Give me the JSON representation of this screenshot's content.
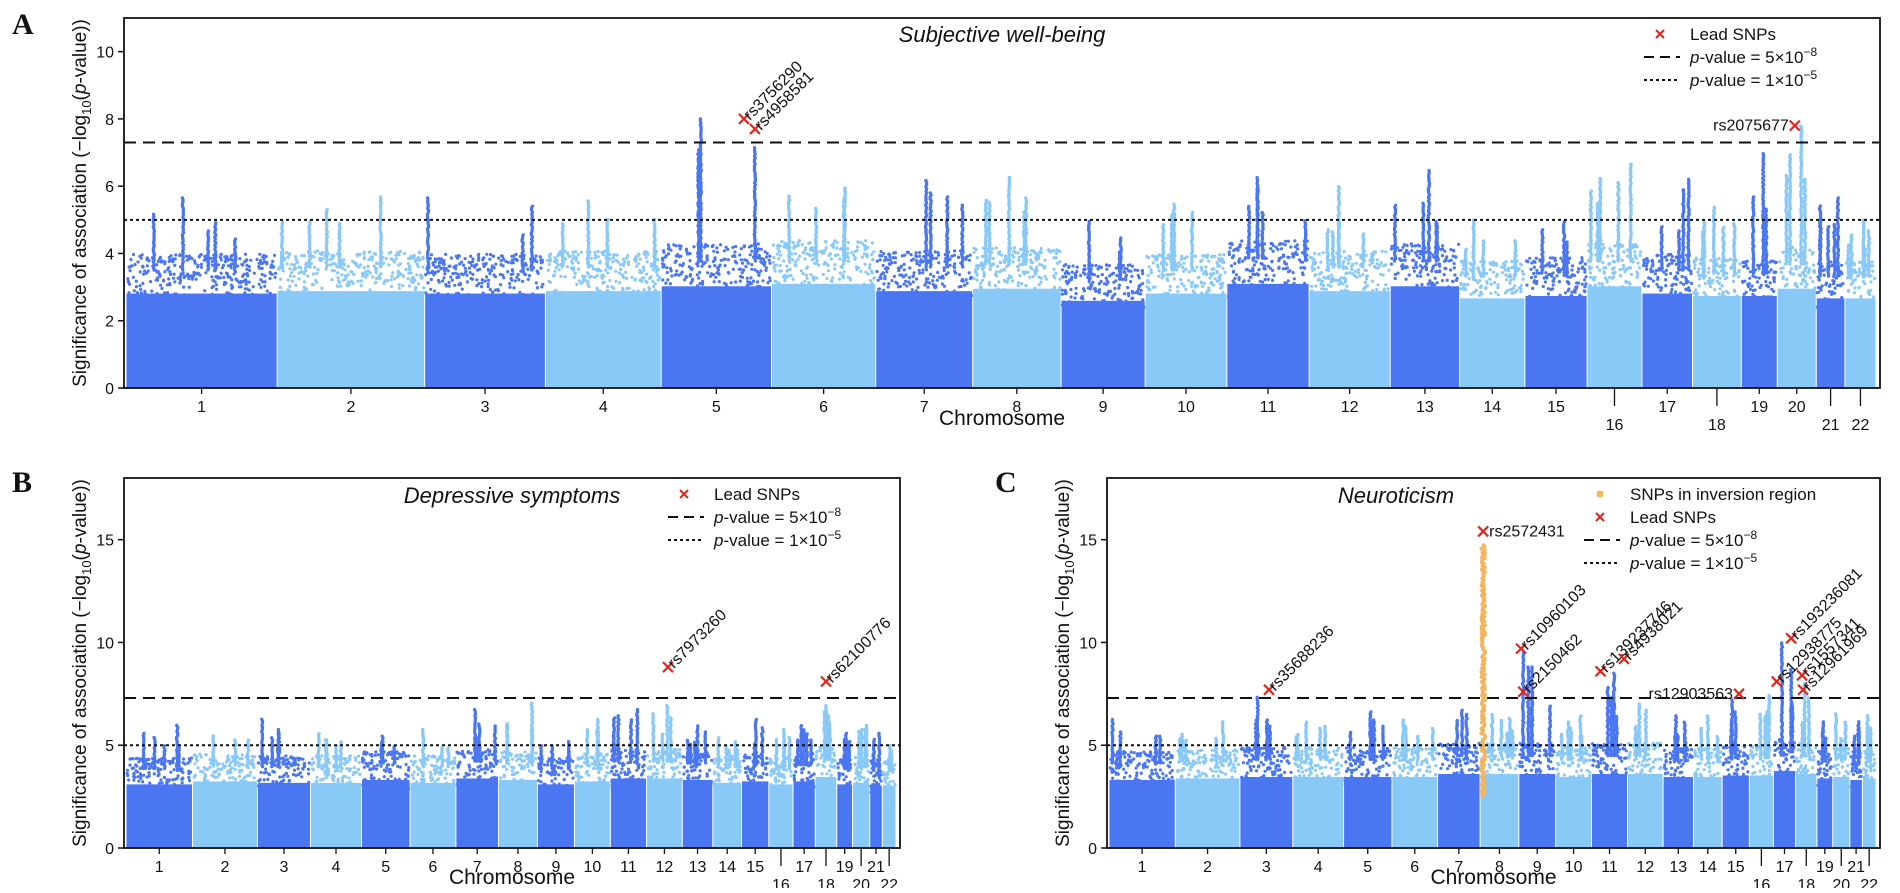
{
  "colors": {
    "dark": "#4a76f2",
    "light": "#88c9f7",
    "inversion": "#f3b45c",
    "lead": "#e0251b",
    "axis": "#111111"
  },
  "legend_text": {
    "lead": "Lead SNPs",
    "inversion": "SNPs in inversion region",
    "gw_prefix": "p",
    "gw_mid": "-value = 5×10",
    "gw_exp": "−8",
    "sug_prefix": "p",
    "sug_mid": "-value = 1×10",
    "sug_exp": "−5"
  },
  "chart_data": [
    {
      "type": "scatter",
      "subtype": "manhattan",
      "panel_label": "A",
      "title": "Subjective well-being",
      "xlabel": "Chromosome",
      "ylabel": "Significance of association (−log10(p-value))",
      "ylim": [
        0,
        11
      ],
      "yticks": [
        0,
        2,
        4,
        6,
        8,
        10
      ],
      "genome_wide_threshold": 7.3,
      "suggestive_threshold": 5.0,
      "legend": [
        "Lead SNPs",
        "p-value = 5×10−8",
        "p-value = 1×10−5"
      ],
      "legend_position": "top-right",
      "chromosomes": [
        {
          "chr": "1",
          "base": 3.9,
          "peak": 5.7
        },
        {
          "chr": "2",
          "base": 4.0,
          "peak": 5.7
        },
        {
          "chr": "3",
          "base": 3.9,
          "peak": 5.7
        },
        {
          "chr": "4",
          "base": 4.0,
          "peak": 5.6
        },
        {
          "chr": "5",
          "base": 4.2,
          "peak": 8.0
        },
        {
          "chr": "6",
          "base": 4.3,
          "peak": 6.0
        },
        {
          "chr": "7",
          "base": 4.0,
          "peak": 6.2
        },
        {
          "chr": "8",
          "base": 4.1,
          "peak": 6.3
        },
        {
          "chr": "9",
          "base": 3.6,
          "peak": 5.0
        },
        {
          "chr": "10",
          "base": 3.9,
          "peak": 5.5
        },
        {
          "chr": "11",
          "base": 4.3,
          "peak": 6.3
        },
        {
          "chr": "12",
          "base": 4.0,
          "peak": 6.0
        },
        {
          "chr": "13",
          "base": 4.2,
          "peak": 6.5
        },
        {
          "chr": "14",
          "base": 3.7,
          "peak": 5.0
        },
        {
          "chr": "15",
          "base": 3.8,
          "peak": 5.0
        },
        {
          "chr": "16",
          "base": 4.2,
          "peak": 6.7
        },
        {
          "chr": "17",
          "base": 3.9,
          "peak": 6.2
        },
        {
          "chr": "18",
          "base": 3.8,
          "peak": 5.4
        },
        {
          "chr": "19",
          "base": 3.8,
          "peak": 7.0
        },
        {
          "chr": "20",
          "base": 4.1,
          "peak": 7.8
        },
        {
          "chr": "21",
          "base": 3.7,
          "peak": 5.7
        },
        {
          "chr": "22",
          "base": 3.7,
          "peak": 5.0
        }
      ],
      "lead_snps": [
        {
          "id": "rs3756290",
          "chr": "5",
          "pos": 0.75,
          "y": 8.0
        },
        {
          "id": "rs4958581",
          "chr": "5",
          "pos": 0.85,
          "y": 7.7
        },
        {
          "id": "rs2075677",
          "chr": "20",
          "pos": 0.45,
          "y": 7.8
        }
      ]
    },
    {
      "type": "scatter",
      "subtype": "manhattan",
      "panel_label": "B",
      "title": "Depressive symptoms",
      "xlabel": "Chromosome",
      "ylabel": "Significance of association (−log10(p-value))",
      "ylim": [
        0,
        18
      ],
      "yticks": [
        0,
        5,
        10,
        15
      ],
      "genome_wide_threshold": 7.3,
      "suggestive_threshold": 5.0,
      "legend": [
        "Lead SNPs",
        "p-value = 5×10−8",
        "p-value = 1×10−5"
      ],
      "legend_position": "top-right",
      "chromosomes": [
        {
          "chr": "1",
          "base": 4.3,
          "peak": 6.0
        },
        {
          "chr": "2",
          "base": 4.5,
          "peak": 5.5
        },
        {
          "chr": "3",
          "base": 4.4,
          "peak": 6.3
        },
        {
          "chr": "4",
          "base": 4.4,
          "peak": 5.6
        },
        {
          "chr": "5",
          "base": 4.6,
          "peak": 5.5
        },
        {
          "chr": "6",
          "base": 4.4,
          "peak": 5.8
        },
        {
          "chr": "7",
          "base": 4.7,
          "peak": 6.8
        },
        {
          "chr": "8",
          "base": 4.6,
          "peak": 7.1
        },
        {
          "chr": "9",
          "base": 4.3,
          "peak": 5.2
        },
        {
          "chr": "10",
          "base": 4.5,
          "peak": 6.3
        },
        {
          "chr": "11",
          "base": 4.7,
          "peak": 6.8
        },
        {
          "chr": "12",
          "base": 4.7,
          "peak": 7.0
        },
        {
          "chr": "13",
          "base": 4.6,
          "peak": 6.0
        },
        {
          "chr": "14",
          "base": 4.4,
          "peak": 5.4
        },
        {
          "chr": "15",
          "base": 4.5,
          "peak": 6.3
        },
        {
          "chr": "16",
          "base": 4.3,
          "peak": 5.8
        },
        {
          "chr": "17",
          "base": 4.5,
          "peak": 6.0
        },
        {
          "chr": "18",
          "base": 4.8,
          "peak": 7.0
        },
        {
          "chr": "19",
          "base": 4.3,
          "peak": 5.6
        },
        {
          "chr": "20",
          "base": 4.4,
          "peak": 6.0
        },
        {
          "chr": "21",
          "base": 4.2,
          "peak": 5.6
        },
        {
          "chr": "22",
          "base": 4.2,
          "peak": 5.0
        }
      ],
      "lead_snps": [
        {
          "id": "rs7973260",
          "chr": "12",
          "pos": 0.6,
          "y": 8.8
        },
        {
          "id": "rs62100776",
          "chr": "18",
          "pos": 0.5,
          "y": 8.1
        }
      ]
    },
    {
      "type": "scatter",
      "subtype": "manhattan",
      "panel_label": "C",
      "title": "Neuroticism",
      "xlabel": "Chromosome",
      "ylabel": "Significance of association (−log10(p-value))",
      "ylim": [
        0,
        18
      ],
      "yticks": [
        0,
        5,
        10,
        15
      ],
      "genome_wide_threshold": 7.3,
      "suggestive_threshold": 5.0,
      "legend": [
        "SNPs in inversion region",
        "Lead SNPs",
        "p-value = 5×10−8",
        "p-value = 1×10−5"
      ],
      "legend_position": "top-right",
      "inversion_region": {
        "chr": "8",
        "pos": 0.08,
        "ymin": 2.5,
        "ymax": 14.8
      },
      "chromosomes": [
        {
          "chr": "1",
          "base": 4.6,
          "peak": 6.3
        },
        {
          "chr": "2",
          "base": 4.7,
          "peak": 6.2
        },
        {
          "chr": "3",
          "base": 4.8,
          "peak": 7.4
        },
        {
          "chr": "4",
          "base": 4.8,
          "peak": 6.2
        },
        {
          "chr": "5",
          "base": 4.8,
          "peak": 6.7
        },
        {
          "chr": "6",
          "base": 4.8,
          "peak": 6.3
        },
        {
          "chr": "7",
          "base": 5.0,
          "peak": 6.7
        },
        {
          "chr": "8",
          "base": 5.0,
          "peak": 6.5
        },
        {
          "chr": "9",
          "base": 5.0,
          "peak": 9.5
        },
        {
          "chr": "10",
          "base": 4.8,
          "peak": 6.5
        },
        {
          "chr": "11",
          "base": 5.0,
          "peak": 8.5
        },
        {
          "chr": "12",
          "base": 5.0,
          "peak": 7.0
        },
        {
          "chr": "13",
          "base": 4.8,
          "peak": 6.5
        },
        {
          "chr": "14",
          "base": 4.8,
          "peak": 6.5
        },
        {
          "chr": "15",
          "base": 4.9,
          "peak": 7.3
        },
        {
          "chr": "16",
          "base": 4.9,
          "peak": 7.5
        },
        {
          "chr": "17",
          "base": 5.2,
          "peak": 10.0
        },
        {
          "chr": "18",
          "base": 5.0,
          "peak": 8.0
        },
        {
          "chr": "19",
          "base": 4.7,
          "peak": 6.2
        },
        {
          "chr": "20",
          "base": 4.8,
          "peak": 6.6
        },
        {
          "chr": "21",
          "base": 4.6,
          "peak": 6.2
        },
        {
          "chr": "22",
          "base": 4.7,
          "peak": 6.5
        }
      ],
      "lead_snps": [
        {
          "id": "rs35688236",
          "chr": "3",
          "pos": 0.55,
          "y": 7.7
        },
        {
          "id": "rs2572431",
          "chr": "8",
          "pos": 0.08,
          "y": 15.4
        },
        {
          "id": "rs10960103",
          "chr": "9",
          "pos": 0.06,
          "y": 9.7
        },
        {
          "id": "rs2150462",
          "chr": "9",
          "pos": 0.12,
          "y": 7.6
        },
        {
          "id": "rs139237746",
          "chr": "11",
          "pos": 0.25,
          "y": 8.6
        },
        {
          "id": "rs4938021",
          "chr": "11",
          "pos": 0.9,
          "y": 9.2
        },
        {
          "id": "rs12903563",
          "chr": "15",
          "pos": 0.62,
          "y": 7.5
        },
        {
          "id": "rs12938775",
          "chr": "17",
          "pos": 0.15,
          "y": 8.1
        },
        {
          "id": "rs193236081",
          "chr": "17",
          "pos": 0.8,
          "y": 10.2
        },
        {
          "id": "rs1557341",
          "chr": "18",
          "pos": 0.3,
          "y": 8.4
        },
        {
          "id": "rs12961969",
          "chr": "18",
          "pos": 0.35,
          "y": 7.7
        }
      ]
    }
  ]
}
